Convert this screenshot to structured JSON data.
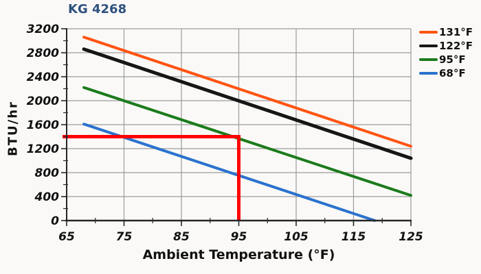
{
  "page": {
    "background": "#FAF9F7"
  },
  "header": {
    "title": "KG 4268",
    "title_color": "#2E517E"
  },
  "chart_data": {
    "type": "line",
    "title": "KG 4268",
    "xlabel": "Ambient Temperature (°F)",
    "ylabel": "BTU/hr",
    "xlim": [
      65,
      125
    ],
    "ylim": [
      0,
      3200
    ],
    "x_ticks": [
      65,
      75,
      85,
      95,
      105,
      115,
      125
    ],
    "x_minor_tick_step": 5,
    "y_ticks": [
      0,
      400,
      800,
      1200,
      1600,
      2000,
      2400,
      2800,
      3200
    ],
    "y_minor_tick_step": 200,
    "grid": true,
    "legend_position": "right",
    "series": [
      {
        "name": "131°F",
        "color": "#FF5412",
        "points": [
          [
            68,
            3060
          ],
          [
            125,
            1240
          ]
        ]
      },
      {
        "name": "122°F",
        "color": "#161616",
        "points": [
          [
            68,
            2860
          ],
          [
            125,
            1040
          ]
        ]
      },
      {
        "name": "95°F",
        "color": "#1B7B1B",
        "points": [
          [
            68,
            2220
          ],
          [
            125,
            420
          ]
        ]
      },
      {
        "name": "68°F",
        "color": "#2B72CE",
        "points": [
          [
            68,
            1610
          ],
          [
            118.7,
            0
          ]
        ]
      }
    ],
    "annotation": {
      "color": "#FF0000",
      "x": 95,
      "y": 1400,
      "description": "Red guide lines marking ~1400 BTU/hr at 95°F ambient"
    },
    "colors": {
      "grid": "#9B9B9B",
      "axis": "#262626",
      "tick_label": "#111111"
    }
  }
}
